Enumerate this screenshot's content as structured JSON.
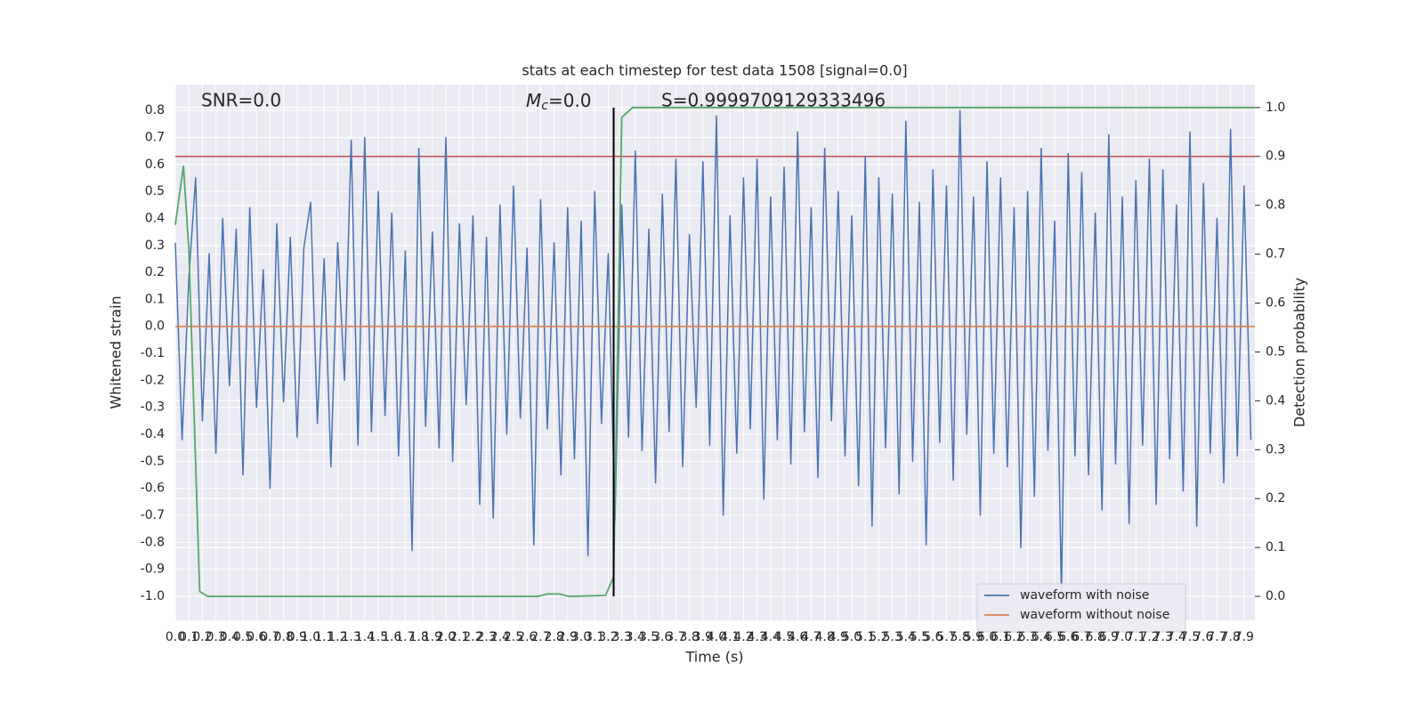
{
  "chart_data": {
    "type": "line",
    "title": "stats at each timestep for test data 1508 [signal=0.0]",
    "xlabel": "Time (s)",
    "ylabel": "Whitened strain",
    "y2label": "Detection probability",
    "annotations": [
      {
        "text": "SNR=0.0"
      },
      {
        "symbol": "M",
        "subscript": "c",
        "text": "=0.0"
      },
      {
        "text": "S=0.9999709129333496"
      }
    ],
    "background": "#eaeaf2",
    "grid": true,
    "legend": "lower right",
    "xlim": [
      0,
      7.98
    ],
    "ylim": [
      -1.089,
      0.896
    ],
    "y2lim": [
      -0.049,
      1.047
    ],
    "xticks": [
      {
        "value": 0,
        "label": "0.0"
      },
      0.1,
      0.2,
      0.3,
      0.4,
      0.5,
      0.6,
      0.7,
      0.8,
      0.9,
      {
        "value": 1,
        "label": "1.0"
      },
      1.1,
      1.2,
      1.3,
      1.4,
      1.5,
      1.6,
      1.7,
      1.8,
      1.9,
      {
        "value": 2,
        "label": "2.0"
      },
      2.1,
      2.2,
      2.3,
      2.4,
      2.5,
      2.6,
      2.7,
      2.8,
      2.9,
      {
        "value": 3,
        "label": "3.0"
      },
      3.1,
      3.2,
      3.3,
      3.4,
      3.5,
      3.6,
      3.7,
      3.8,
      3.9,
      {
        "value": 4,
        "label": "4.0"
      },
      4.1,
      4.2,
      4.3,
      4.4,
      4.5,
      4.6,
      4.7,
      4.8,
      4.9,
      {
        "value": 5,
        "label": "5.0"
      },
      5.1,
      5.2,
      5.3,
      5.4,
      5.5,
      5.6,
      5.7,
      5.8,
      5.9,
      {
        "value": 6,
        "label": "6.0"
      },
      6.1,
      6.2,
      6.3,
      6.4,
      6.5,
      6.6,
      6.7,
      6.8,
      6.9,
      {
        "value": 7,
        "label": "7.0"
      },
      7.1,
      7.2,
      7.3,
      7.4,
      7.5,
      7.6,
      7.7,
      7.8,
      7.9
    ],
    "yticks": [
      0.8,
      0.7,
      0.6,
      0.5,
      0.4,
      0.3,
      0.2,
      0.1,
      {
        "value": 0,
        "label": "0.0"
      },
      -0.1,
      -0.2,
      -0.3,
      -0.4,
      -0.5,
      -0.6,
      -0.7,
      -0.8,
      -0.9,
      {
        "value": -1,
        "label": "-1.0"
      }
    ],
    "y2ticks": [
      {
        "value": 1,
        "label": "1.0"
      },
      0.9,
      0.8,
      0.7,
      0.6,
      0.5,
      0.4,
      0.3,
      0.2,
      0.1,
      {
        "value": 0,
        "label": "0.0"
      }
    ],
    "series": [
      {
        "name": "waveform with noise",
        "color": "#4c72b0",
        "x": [
          0,
          0.05,
          0.1,
          0.15,
          0.2,
          0.25,
          0.3,
          0.35,
          0.4,
          0.45,
          0.5,
          0.55,
          0.6,
          0.65,
          0.7,
          0.75,
          0.8,
          0.85,
          0.9,
          0.95,
          1,
          1.05,
          1.1,
          1.15,
          1.2,
          1.25,
          1.3,
          1.35,
          1.4,
          1.45,
          1.5,
          1.55,
          1.6,
          1.65,
          1.7,
          1.75,
          1.8,
          1.85,
          1.9,
          1.95,
          2,
          2.05,
          2.1,
          2.15,
          2.2,
          2.25,
          2.3,
          2.35,
          2.4,
          2.45,
          2.5,
          2.55,
          2.6,
          2.65,
          2.7,
          2.75,
          2.8,
          2.85,
          2.9,
          2.95,
          3,
          3.05,
          3.1,
          3.15,
          3.2,
          3.25,
          3.3,
          3.35,
          3.4,
          3.45,
          3.5,
          3.55,
          3.6,
          3.65,
          3.7,
          3.75,
          3.8,
          3.85,
          3.9,
          3.95,
          4,
          4.05,
          4.1,
          4.15,
          4.2,
          4.25,
          4.3,
          4.35,
          4.4,
          4.45,
          4.5,
          4.55,
          4.6,
          4.65,
          4.7,
          4.75,
          4.8,
          4.85,
          4.9,
          4.95,
          5,
          5.05,
          5.1,
          5.15,
          5.2,
          5.25,
          5.3,
          5.35,
          5.4,
          5.45,
          5.5,
          5.55,
          5.6,
          5.65,
          5.7,
          5.75,
          5.8,
          5.85,
          5.9,
          5.95,
          6,
          6.05,
          6.1,
          6.15,
          6.2,
          6.25,
          6.3,
          6.35,
          6.4,
          6.45,
          6.5,
          6.55,
          6.6,
          6.65,
          6.7,
          6.75,
          6.8,
          6.85,
          6.9,
          6.95,
          7,
          7.05,
          7.1,
          7.15,
          7.2,
          7.25,
          7.3,
          7.35,
          7.4,
          7.45,
          7.5,
          7.55,
          7.6,
          7.65,
          7.7,
          7.75,
          7.8,
          7.85,
          7.9,
          7.95
        ],
        "values": [
          0.31,
          -0.42,
          0.18,
          0.55,
          -0.35,
          0.27,
          -0.47,
          0.4,
          -0.22,
          0.36,
          -0.55,
          0.44,
          -0.3,
          0.21,
          -0.6,
          0.38,
          -0.28,
          0.33,
          -0.41,
          0.29,
          0.46,
          -0.36,
          0.25,
          -0.52,
          0.31,
          -0.2,
          0.69,
          -0.44,
          0.7,
          -0.39,
          0.5,
          -0.33,
          0.42,
          -0.48,
          0.28,
          -0.83,
          0.66,
          -0.37,
          0.35,
          -0.45,
          0.7,
          -0.5,
          0.38,
          -0.29,
          0.41,
          -0.66,
          0.33,
          -0.71,
          0.45,
          -0.4,
          0.52,
          -0.34,
          0.29,
          -0.81,
          0.47,
          -0.38,
          0.31,
          -0.55,
          0.44,
          -0.49,
          0.39,
          -0.85,
          0.5,
          -0.36,
          0.27,
          -0.72,
          0.45,
          -0.41,
          0.65,
          -0.46,
          0.36,
          -0.58,
          0.49,
          -0.39,
          0.62,
          -0.52,
          0.34,
          -0.3,
          0.61,
          -0.44,
          0.78,
          -0.7,
          0.41,
          -0.47,
          0.55,
          -0.38,
          0.62,
          -0.64,
          0.48,
          -0.42,
          0.59,
          -0.51,
          0.72,
          -0.39,
          0.44,
          -0.56,
          0.66,
          -0.35,
          0.5,
          -0.48,
          0.41,
          -0.59,
          0.63,
          -0.74,
          0.55,
          -0.45,
          0.49,
          -0.62,
          0.76,
          -0.5,
          0.46,
          -0.81,
          0.58,
          -0.43,
          0.52,
          -0.57,
          0.8,
          -0.4,
          0.48,
          -0.7,
          0.61,
          -0.47,
          0.55,
          -0.52,
          0.44,
          -0.82,
          0.5,
          -0.63,
          0.66,
          -0.46,
          0.39,
          -0.99,
          0.64,
          -0.48,
          0.57,
          -0.55,
          0.42,
          -0.68,
          0.71,
          -0.51,
          0.48,
          -0.73,
          0.54,
          -0.44,
          0.62,
          -0.66,
          0.58,
          -0.49,
          0.45,
          -0.61,
          0.72,
          -0.74,
          0.53,
          -0.47,
          0.4,
          -0.58,
          0.73,
          -0.48,
          0.52,
          -0.42
        ]
      },
      {
        "name": "waveform without noise",
        "color": "#dd8452",
        "x": [
          0,
          7.98
        ],
        "values": [
          0,
          0
        ]
      },
      {
        "color": "#55a868",
        "axis": "y2",
        "x": [
          0,
          0.06,
          0.1,
          0.18,
          0.24,
          2.68,
          2.75,
          2.84,
          2.91,
          3.18,
          3.24,
          3.3,
          3.38,
          7.98
        ],
        "values": [
          0.76,
          0.88,
          0.71,
          0.01,
          0,
          0,
          0.005,
          0.005,
          0,
          0.002,
          0.04,
          0.98,
          1,
          1
        ]
      }
    ],
    "hlines": [
      {
        "value": 0.9,
        "axis": "y2",
        "color": "#c44e52"
      }
    ],
    "vlines": [
      {
        "x": 3.24,
        "ymin": 0,
        "ymax": 1,
        "axis": "y2",
        "color": "#000000"
      }
    ]
  }
}
